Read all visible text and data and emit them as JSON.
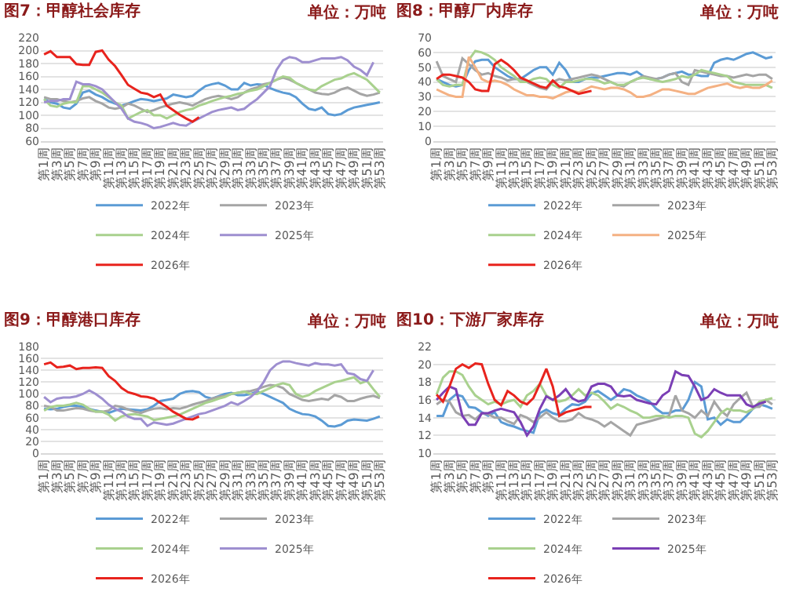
{
  "chart_data": [
    {
      "type": "line",
      "title": "图7：甲醇社会库存",
      "annotations": [
        "单位：万吨"
      ],
      "categories": [
        "第1周",
        null,
        "第3周",
        null,
        "第5周",
        null,
        "第7周",
        null,
        "第9周",
        null,
        "第11周",
        null,
        "第13周",
        null,
        "第15周",
        null,
        "第17周",
        null,
        "第19周",
        null,
        "第21周",
        null,
        "第23周",
        null,
        "第25周",
        null,
        "第27周",
        null,
        "第29周",
        null,
        "第31周",
        null,
        "第33周",
        null,
        "第35周",
        null,
        "第37周",
        null,
        "第39周",
        null,
        "第41周",
        null,
        "第43周",
        null,
        "第45周",
        null,
        "第47周",
        null,
        "第49周",
        null,
        "第51周",
        null,
        "第53周"
      ],
      "ylim": [
        60,
        220
      ],
      "yticks": [
        60,
        80,
        100,
        120,
        140,
        160,
        180,
        200,
        220
      ],
      "grid": "y",
      "legend": "bottom",
      "series": [
        {
          "name": "2022年",
          "color": "#5b9bd5",
          "values": [
            125,
            120,
            118,
            112,
            110,
            118,
            135,
            138,
            132,
            128,
            122,
            118,
            115,
            118,
            122,
            125,
            124,
            122,
            124,
            126,
            132,
            130,
            128,
            130,
            138,
            145,
            148,
            150,
            146,
            140,
            140,
            150,
            146,
            148,
            147,
            142,
            138,
            135,
            133,
            128,
            118,
            110,
            108,
            112,
            102,
            100,
            102,
            108,
            112,
            114,
            116,
            118,
            120
          ]
        },
        {
          "name": "2023年",
          "color": "#a5a5a5",
          "values": [
            128,
            125,
            125,
            122,
            120,
            122,
            126,
            128,
            122,
            118,
            112,
            110,
            112,
            118,
            115,
            110,
            105,
            108,
            112,
            115,
            118,
            120,
            118,
            115,
            120,
            125,
            128,
            130,
            128,
            125,
            128,
            135,
            140,
            143,
            148,
            150,
            155,
            158,
            155,
            150,
            145,
            140,
            135,
            133,
            132,
            135,
            140,
            143,
            138,
            133,
            130,
            132,
            135
          ]
        },
        {
          "name": "2024年",
          "color": "#a9d18e",
          "values": [
            125,
            115,
            113,
            118,
            120,
            120,
            145,
            145,
            140,
            135,
            128,
            120,
            115,
            95,
            100,
            105,
            108,
            100,
            100,
            95,
            100,
            105,
            108,
            110,
            115,
            118,
            122,
            125,
            128,
            130,
            133,
            135,
            138,
            140,
            145,
            150,
            155,
            160,
            158,
            150,
            145,
            140,
            138,
            145,
            150,
            155,
            157,
            162,
            165,
            160,
            155,
            145,
            135
          ]
        },
        {
          "name": "2025年",
          "color": "#9e8fd0",
          "values": [
            120,
            122,
            122,
            125,
            125,
            152,
            148,
            148,
            145,
            140,
            130,
            120,
            110,
            95,
            90,
            88,
            85,
            80,
            82,
            85,
            88,
            85,
            84,
            90,
            95,
            100,
            105,
            108,
            110,
            112,
            108,
            110,
            118,
            125,
            135,
            145,
            170,
            185,
            190,
            188,
            182,
            182,
            185,
            188,
            188,
            188,
            190,
            185,
            175,
            170,
            162,
            182,
            null
          ]
        },
        {
          "name": "2026年",
          "color": "#e8231d",
          "values": [
            194,
            199,
            190,
            190,
            190,
            179,
            178,
            178,
            198,
            200,
            186,
            176,
            162,
            147,
            141,
            135,
            133,
            128,
            132,
            115,
            108,
            101,
            95,
            90,
            97,
            null,
            null,
            null,
            null,
            null,
            null,
            null,
            null,
            null,
            null,
            null,
            null,
            null,
            null,
            null,
            null,
            null,
            null,
            null,
            null,
            null,
            null,
            null,
            null,
            null,
            null,
            null,
            null
          ]
        }
      ]
    },
    {
      "type": "line",
      "title": "图8：甲醇厂内库存",
      "annotations": [
        "单位：万吨"
      ],
      "categories": [
        "第1周",
        null,
        "第3周",
        null,
        "第5周",
        null,
        "第7周",
        null,
        "第9周",
        null,
        "第11周",
        null,
        "第13周",
        null,
        "第15周",
        null,
        "第17周",
        null,
        "第19周",
        null,
        "第21周",
        null,
        "第23周",
        null,
        "第25周",
        null,
        "第27周",
        null,
        "第29周",
        null,
        "第31周",
        null,
        "第33周",
        null,
        "第35周",
        null,
        "第37周",
        null,
        "第39周",
        null,
        "第41周",
        null,
        "第43周",
        null,
        "第45周",
        null,
        "第47周",
        null,
        "第49周",
        null,
        "第51周",
        null,
        "第53周"
      ],
      "ylim": [
        0,
        70
      ],
      "yticks": [
        0,
        10,
        20,
        30,
        40,
        50,
        60,
        70
      ],
      "grid": "y",
      "legend": "bottom",
      "series": [
        {
          "name": "2022年",
          "color": "#5b9bd5",
          "values": [
            42,
            40,
            38,
            37,
            38,
            48,
            54,
            55,
            55,
            50,
            47,
            44,
            42,
            42,
            45,
            48,
            50,
            50,
            45,
            53,
            48,
            40,
            40,
            42,
            43,
            43,
            44,
            45,
            46,
            46,
            45,
            47,
            44,
            42,
            42,
            43,
            45,
            46,
            47,
            45,
            45,
            44,
            44,
            53,
            55,
            56,
            55,
            57,
            59,
            60,
            58,
            56,
            57
          ]
        },
        {
          "name": "2023年",
          "color": "#a5a5a5",
          "values": [
            54,
            44,
            42,
            40,
            56,
            52,
            48,
            45,
            46,
            44,
            43,
            41,
            42,
            42,
            40,
            38,
            36,
            35,
            40,
            42,
            41,
            42,
            43,
            44,
            45,
            44,
            42,
            40,
            38,
            37,
            40,
            42,
            44,
            43,
            42,
            43,
            45,
            46,
            40,
            38,
            48,
            47,
            46,
            45,
            44,
            44,
            43,
            44,
            45,
            44,
            45,
            45,
            42
          ]
        },
        {
          "name": "2024年",
          "color": "#a9d18e",
          "values": [
            42,
            38,
            37,
            38,
            38,
            55,
            61,
            60,
            58,
            55,
            50,
            47,
            44,
            40,
            40,
            42,
            43,
            42,
            38,
            36,
            40,
            40,
            41,
            42,
            42,
            41,
            39,
            40,
            38,
            38,
            40,
            42,
            43,
            42,
            41,
            40,
            41,
            42,
            44,
            43,
            45,
            48,
            47,
            46,
            45,
            44,
            40,
            39,
            38,
            38,
            38,
            38,
            36
          ]
        },
        {
          "name": "2025年",
          "color": "#f4b183",
          "values": [
            35,
            33,
            31,
            30,
            30,
            57,
            50,
            42,
            40,
            41,
            40,
            38,
            35,
            33,
            31,
            31,
            30,
            30,
            29,
            31,
            33,
            34,
            33,
            35,
            37,
            36,
            35,
            36,
            36,
            35,
            33,
            30,
            30,
            31,
            33,
            35,
            35,
            34,
            33,
            32,
            32,
            34,
            36,
            37,
            38,
            39,
            37,
            36,
            37,
            36,
            36,
            38,
            41
          ]
        },
        {
          "name": "2026年",
          "color": "#e8231d",
          "values": [
            42,
            45,
            45,
            44,
            43,
            40,
            35,
            34,
            34,
            52,
            55,
            52,
            48,
            43,
            41,
            39,
            37,
            36,
            41,
            37,
            36,
            34,
            32,
            33,
            34,
            null,
            null,
            null,
            null,
            null,
            null,
            null,
            null,
            null,
            null,
            null,
            null,
            null,
            null,
            null,
            null,
            null,
            null,
            null,
            null,
            null,
            null,
            null,
            null,
            null,
            null,
            null,
            null
          ]
        }
      ]
    },
    {
      "type": "line",
      "title": "图9：甲醇港口库存",
      "annotations": [
        "单位：万吨"
      ],
      "categories": [
        "第1周",
        null,
        "第3周",
        null,
        "第5周",
        null,
        "第7周",
        null,
        "第9周",
        null,
        "第11周",
        null,
        "第13周",
        null,
        "第15周",
        null,
        "第17周",
        null,
        "第19周",
        null,
        "第21周",
        null,
        "第23周",
        null,
        "第25周",
        null,
        "第27周",
        null,
        "第29周",
        null,
        "第31周",
        null,
        "第33周",
        null,
        "第35周",
        null,
        "第37周",
        null,
        "第39周",
        null,
        "第41周",
        null,
        "第43周",
        null,
        "第45周",
        null,
        "第47周",
        null,
        "第49周",
        null,
        "第51周",
        null,
        "第53周"
      ],
      "ylim": [
        0,
        180
      ],
      "yticks": [
        0,
        20,
        40,
        60,
        80,
        100,
        120,
        140,
        160,
        180
      ],
      "grid": "y",
      "legend": "bottom",
      "series": [
        {
          "name": "2022年",
          "color": "#5b9bd5",
          "values": [
            75,
            74,
            75,
            78,
            80,
            80,
            78,
            75,
            72,
            70,
            68,
            72,
            75,
            74,
            73,
            72,
            74,
            80,
            88,
            90,
            92,
            100,
            104,
            105,
            103,
            95,
            92,
            96,
            100,
            102,
            98,
            98,
            100,
            104,
            100,
            95,
            90,
            85,
            75,
            70,
            66,
            65,
            62,
            55,
            46,
            45,
            48,
            55,
            57,
            56,
            55,
            58,
            62
          ]
        },
        {
          "name": "2023年",
          "color": "#a5a5a5",
          "values": [
            80,
            78,
            72,
            72,
            74,
            76,
            75,
            72,
            70,
            70,
            72,
            80,
            78,
            74,
            70,
            68,
            72,
            75,
            76,
            74,
            76,
            75,
            78,
            82,
            85,
            88,
            92,
            95,
            97,
            100,
            102,
            104,
            105,
            108,
            112,
            115,
            114,
            110,
            100,
            95,
            90,
            88,
            90,
            92,
            90,
            98,
            95,
            88,
            88,
            92,
            95,
            97,
            93
          ]
        },
        {
          "name": "2024年",
          "color": "#a9d18e",
          "values": [
            72,
            78,
            80,
            80,
            82,
            85,
            82,
            75,
            70,
            70,
            65,
            55,
            62,
            65,
            66,
            64,
            62,
            56,
            58,
            60,
            62,
            65,
            70,
            75,
            80,
            85,
            88,
            92,
            95,
            100,
            102,
            104,
            100,
            100,
            105,
            110,
            115,
            118,
            115,
            100,
            95,
            98,
            105,
            110,
            115,
            120,
            122,
            125,
            128,
            118,
            122,
            108,
            95
          ]
        },
        {
          "name": "2025年",
          "color": "#9e8fd0",
          "values": [
            95,
            86,
            92,
            94,
            94,
            96,
            100,
            106,
            100,
            92,
            82,
            75,
            70,
            62,
            58,
            58,
            46,
            52,
            50,
            48,
            50,
            54,
            58,
            62,
            66,
            68,
            72,
            76,
            80,
            86,
            82,
            88,
            95,
            105,
            120,
            140,
            150,
            155,
            155,
            152,
            150,
            148,
            152,
            150,
            150,
            148,
            150,
            135,
            133,
            125,
            122,
            140,
            null
          ]
        },
        {
          "name": "2026年",
          "color": "#e8231d",
          "values": [
            150,
            153,
            145,
            146,
            148,
            142,
            144,
            144,
            145,
            144,
            130,
            122,
            110,
            103,
            100,
            96,
            95,
            92,
            85,
            78,
            70,
            64,
            58,
            57,
            62,
            null,
            null,
            null,
            null,
            null,
            null,
            null,
            null,
            null,
            null,
            null,
            null,
            null,
            null,
            null,
            null,
            null,
            null,
            null,
            null,
            null,
            null,
            null,
            null,
            null,
            null,
            null,
            null
          ]
        }
      ]
    },
    {
      "type": "line",
      "title": "图10：下游厂家库存",
      "annotations": [
        "单位：万吨"
      ],
      "categories": [
        "第1周",
        null,
        "第3周",
        null,
        "第5周",
        null,
        "第7周",
        null,
        "第9周",
        null,
        "第11周",
        null,
        "第13周",
        null,
        "第15周",
        null,
        "第17周",
        null,
        "第19周",
        null,
        "第21周",
        null,
        "第23周",
        null,
        "第25周",
        null,
        "第27周",
        null,
        "第29周",
        null,
        "第31周",
        null,
        "第33周",
        null,
        "第35周",
        null,
        "第37周",
        null,
        "第39周",
        null,
        "第41周",
        null,
        "第43周",
        null,
        "第45周",
        null,
        "第47周",
        null,
        "第49周",
        null,
        "第51周",
        null,
        "第53周"
      ],
      "ylim": [
        10,
        22
      ],
      "yticks": [
        10,
        12,
        14,
        16,
        18,
        20,
        22
      ],
      "grid": "y",
      "legend": "bottom",
      "series": [
        {
          "name": "2022年",
          "color": "#5b9bd5",
          "values": [
            14.2,
            14.2,
            16.0,
            16.6,
            16.4,
            15.2,
            15.1,
            14.6,
            14.2,
            14.6,
            13.5,
            13.2,
            13.0,
            12.7,
            12.5,
            12.3,
            14.5,
            14.9,
            14.5,
            14.3,
            15.0,
            15.5,
            15.4,
            15.8,
            16.7,
            17.0,
            16.5,
            16.0,
            16.5,
            17.2,
            17.0,
            16.5,
            16.2,
            15.8,
            15.0,
            14.5,
            14.5,
            14.8,
            14.8,
            16.0,
            18.0,
            17.5,
            13.8,
            14.0,
            13.2,
            13.8,
            13.5,
            13.5,
            14.2,
            15.0,
            15.5,
            15.3,
            15.0
          ]
        },
        {
          "name": "2023年",
          "color": "#a5a5a5",
          "values": [
            15.5,
            16.0,
            15.8,
            14.6,
            14.2,
            14.3,
            13.8,
            14.5,
            14.4,
            14.0,
            14.0,
            13.6,
            13.3,
            14.3,
            14.0,
            13.5,
            14.0,
            14.6,
            14.0,
            13.6,
            13.6,
            13.8,
            14.5,
            14.0,
            13.8,
            13.5,
            13.0,
            13.5,
            13.0,
            12.5,
            12.0,
            13.2,
            13.4,
            13.6,
            13.8,
            14.0,
            14.2,
            16.5,
            14.8,
            14.5,
            14.0,
            14.8,
            14.2,
            15.8,
            14.8,
            14.2,
            15.5,
            16.2,
            16.8,
            15.2,
            15.2,
            16.0,
            15.5
          ]
        },
        {
          "name": "2024年",
          "color": "#a9d18e",
          "values": [
            16.6,
            18.5,
            19.2,
            19.2,
            18.8,
            17.5,
            16.5,
            16.0,
            15.5,
            15.8,
            15.5,
            15.8,
            16.0,
            15.2,
            16.5,
            17.0,
            17.8,
            16.5,
            16.0,
            15.8,
            16.0,
            16.5,
            17.2,
            16.5,
            16.8,
            16.5,
            15.8,
            15.0,
            15.5,
            15.2,
            14.8,
            14.5,
            14.0,
            14.0,
            14.2,
            14.2,
            14.0,
            14.2,
            14.2,
            14.0,
            12.2,
            11.8,
            12.5,
            13.5,
            14.5,
            15.0,
            14.8,
            14.8,
            14.6,
            15.0,
            15.8,
            16.0,
            16.2
          ]
        },
        {
          "name": "2025年",
          "color": "#7b3fb5",
          "values": [
            16.0,
            16.8,
            17.5,
            17.2,
            14.2,
            13.2,
            13.2,
            14.5,
            14.5,
            14.8,
            15.0,
            14.8,
            14.6,
            13.5,
            12.0,
            13.0,
            15.0,
            16.4,
            16.0,
            16.5,
            17.2,
            16.2,
            15.8,
            16.0,
            17.5,
            17.8,
            17.8,
            17.5,
            16.5,
            16.4,
            16.5,
            16.0,
            15.8,
            15.6,
            15.5,
            16.5,
            17.0,
            19.2,
            18.8,
            18.7,
            17.5,
            16.0,
            16.3,
            17.2,
            16.8,
            16.5,
            16.5,
            16.5,
            15.5,
            15.2,
            15.6,
            15.8,
            null
          ]
        },
        {
          "name": "2026年",
          "color": "#e8231d",
          "values": [
            16.6,
            15.8,
            17.5,
            19.5,
            20.0,
            19.6,
            20.1,
            20.0,
            17.8,
            16.0,
            15.4,
            17.0,
            16.5,
            15.8,
            15.5,
            16.2,
            17.8,
            19.5,
            17.5,
            14.2,
            14.6,
            14.8,
            15.0,
            15.2,
            15.2,
            null,
            null,
            null,
            null,
            null,
            null,
            null,
            null,
            null,
            null,
            null,
            null,
            null,
            null,
            null,
            null,
            null,
            null,
            null,
            null,
            null,
            null,
            null,
            null,
            null,
            null,
            null,
            null
          ]
        }
      ]
    }
  ]
}
